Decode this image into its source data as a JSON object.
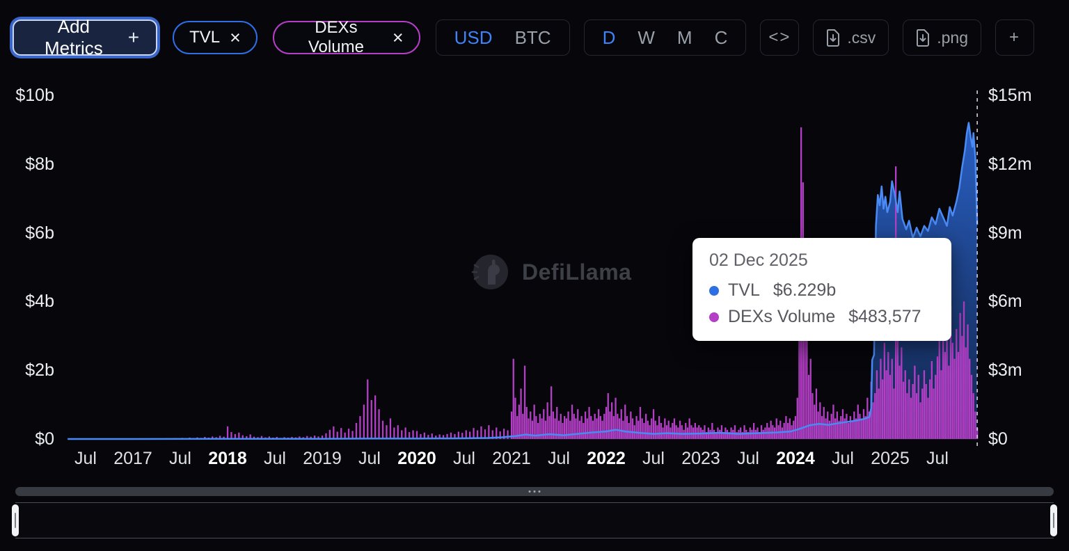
{
  "colors": {
    "tvl": "#2f6fe4",
    "dex": "#b43fc6",
    "accent": "#3f83f8",
    "background": "#06060b"
  },
  "toolbar": {
    "add_metrics_label": "Add Metrics",
    "add_metrics_plus": "+",
    "pills": [
      {
        "label": "TVL",
        "close": "×",
        "color": "#2f6fe4"
      },
      {
        "label": "DEXs Volume",
        "close": "×",
        "color": "#b43fc6"
      }
    ],
    "currency": {
      "options": [
        "USD",
        "BTC"
      ],
      "selected": "USD"
    },
    "interval": {
      "options": [
        "D",
        "W",
        "M",
        "C"
      ],
      "selected": "D"
    },
    "embed_label": "<>",
    "export_csv_label": ".csv",
    "export_png_label": ".png",
    "add_panel_label": "+"
  },
  "watermark": {
    "text": "DefiLlama",
    "icon": "llama-icon"
  },
  "tooltip": {
    "date": "02 Dec 2025",
    "rows": [
      {
        "name": "TVL",
        "value": "$6.229b",
        "color": "#2f6fe4"
      },
      {
        "name": "DEXs Volume",
        "value": "$483,577",
        "color": "#b43fc6"
      }
    ]
  },
  "chart_data": {
    "type": "mixed",
    "x_range": [
      2016.31,
      2025.95
    ],
    "cursor": {
      "t": 2025.92
    },
    "left_axis": {
      "max": 10,
      "unit": "$b",
      "ticks": [
        {
          "label": "$10b",
          "value": 10
        },
        {
          "label": "$8b",
          "value": 8
        },
        {
          "label": "$6b",
          "value": 6
        },
        {
          "label": "$4b",
          "value": 4
        },
        {
          "label": "$2b",
          "value": 2
        },
        {
          "label": "$0",
          "value": 0
        }
      ]
    },
    "right_axis": {
      "max": 15,
      "unit": "$m",
      "ticks": [
        {
          "label": "$15m",
          "value": 15
        },
        {
          "label": "$12m",
          "value": 12
        },
        {
          "label": "$9m",
          "value": 9
        },
        {
          "label": "$6m",
          "value": 6
        },
        {
          "label": "$3m",
          "value": 3
        },
        {
          "label": "$0",
          "value": 0
        }
      ]
    },
    "x_ticks": [
      {
        "t": 2016.5,
        "label": "Jul"
      },
      {
        "t": 2017,
        "label": "2017"
      },
      {
        "t": 2017.5,
        "label": "Jul"
      },
      {
        "t": 2018,
        "label": "2018",
        "bold": true
      },
      {
        "t": 2018.5,
        "label": "Jul"
      },
      {
        "t": 2019,
        "label": "2019"
      },
      {
        "t": 2019.5,
        "label": "Jul"
      },
      {
        "t": 2020,
        "label": "2020",
        "bold": true
      },
      {
        "t": 2020.5,
        "label": "Jul"
      },
      {
        "t": 2021,
        "label": "2021"
      },
      {
        "t": 2021.5,
        "label": "Jul"
      },
      {
        "t": 2022,
        "label": "2022",
        "bold": true
      },
      {
        "t": 2022.5,
        "label": "Jul"
      },
      {
        "t": 2023,
        "label": "2023"
      },
      {
        "t": 2023.5,
        "label": "Jul"
      },
      {
        "t": 2024,
        "label": "2024",
        "bold": true
      },
      {
        "t": 2024.5,
        "label": "Jul"
      },
      {
        "t": 2025,
        "label": "2025"
      },
      {
        "t": 2025.5,
        "label": "Jul"
      }
    ],
    "series": [
      {
        "name": "TVL",
        "type": "line",
        "axis": "left",
        "unit": "$b",
        "color": "#2f6fe4",
        "points": [
          [
            2016.31,
            0
          ],
          [
            2017,
            0.001
          ],
          [
            2018,
            0.004
          ],
          [
            2018.5,
            0.005
          ],
          [
            2019,
            0.006
          ],
          [
            2019.5,
            0.012
          ],
          [
            2020,
            0.012
          ],
          [
            2020.5,
            0.02
          ],
          [
            2020.75,
            0.03
          ],
          [
            2020.9,
            0.05
          ],
          [
            2021.05,
            0.09
          ],
          [
            2021.15,
            0.13
          ],
          [
            2021.25,
            0.1
          ],
          [
            2021.4,
            0.14
          ],
          [
            2021.55,
            0.11
          ],
          [
            2021.7,
            0.15
          ],
          [
            2021.85,
            0.19
          ],
          [
            2022,
            0.22
          ],
          [
            2022.1,
            0.27
          ],
          [
            2022.2,
            0.22
          ],
          [
            2022.35,
            0.18
          ],
          [
            2022.5,
            0.15
          ],
          [
            2022.65,
            0.17
          ],
          [
            2022.8,
            0.15
          ],
          [
            2023,
            0.16
          ],
          [
            2023.2,
            0.18
          ],
          [
            2023.4,
            0.15
          ],
          [
            2023.6,
            0.17
          ],
          [
            2023.8,
            0.19
          ],
          [
            2023.95,
            0.22
          ],
          [
            2024.05,
            0.3
          ],
          [
            2024.15,
            0.4
          ],
          [
            2024.25,
            0.44
          ],
          [
            2024.35,
            0.41
          ],
          [
            2024.45,
            0.46
          ],
          [
            2024.55,
            0.5
          ],
          [
            2024.65,
            0.54
          ],
          [
            2024.72,
            0.58
          ],
          [
            2024.78,
            0.64
          ],
          [
            2024.8,
            0.9
          ],
          [
            2024.81,
            2.3
          ],
          [
            2024.83,
            2.45
          ],
          [
            2024.85,
            6.2
          ],
          [
            2024.87,
            7.1
          ],
          [
            2024.89,
            6.8
          ],
          [
            2024.91,
            7.35
          ],
          [
            2024.93,
            6.7
          ],
          [
            2024.95,
            7.05
          ],
          [
            2024.97,
            6.6
          ],
          [
            2025,
            6.9
          ],
          [
            2025.02,
            7.5
          ],
          [
            2025.05,
            7.1
          ],
          [
            2025.08,
            6.6
          ],
          [
            2025.1,
            7.2
          ],
          [
            2025.13,
            6.4
          ],
          [
            2025.17,
            6.1
          ],
          [
            2025.2,
            6.35
          ],
          [
            2025.24,
            5.85
          ],
          [
            2025.28,
            6.15
          ],
          [
            2025.32,
            5.9
          ],
          [
            2025.36,
            6.2
          ],
          [
            2025.4,
            6.05
          ],
          [
            2025.44,
            6.45
          ],
          [
            2025.48,
            6.25
          ],
          [
            2025.52,
            6.7
          ],
          [
            2025.56,
            6.45
          ],
          [
            2025.6,
            6.2
          ],
          [
            2025.63,
            6.75
          ],
          [
            2025.66,
            6.5
          ],
          [
            2025.7,
            6.9
          ],
          [
            2025.73,
            7.3
          ],
          [
            2025.76,
            7.9
          ],
          [
            2025.79,
            8.4
          ],
          [
            2025.81,
            8.9
          ],
          [
            2025.83,
            9.2
          ],
          [
            2025.85,
            8.8
          ],
          [
            2025.87,
            8.5
          ],
          [
            2025.88,
            8.9
          ],
          [
            2025.9,
            8.2
          ],
          [
            2025.91,
            7.2
          ],
          [
            2025.92,
            6.229
          ]
        ]
      },
      {
        "name": "DEXs Volume",
        "type": "bar",
        "axis": "right",
        "unit": "$m",
        "color": "#b43fc6",
        "segments": [
          {
            "start": 2016.32,
            "step": 0.04,
            "values": [
              0.003,
              0.004,
              0.003,
              0.005,
              0.004,
              0.006,
              0.005,
              0.007,
              0.005,
              0.008,
              0.006,
              0.009,
              0.007,
              0.01,
              0.008,
              0.012,
              0.01
            ]
          },
          {
            "start": 2017.0,
            "step": 0.04,
            "values": [
              0.012,
              0.018,
              0.014,
              0.02,
              0.016,
              0.025,
              0.018,
              0.03,
              0.022,
              0.035,
              0.025,
              0.04,
              0.03,
              0.05,
              0.035,
              0.06,
              0.04,
              0.07,
              0.05,
              0.09,
              0.06,
              0.11,
              0.08,
              0.14,
              0.1
            ]
          },
          {
            "start": 2018.0,
            "step": 0.04,
            "values": [
              0.55,
              0.3,
              0.22,
              0.28,
              0.16,
              0.12,
              0.2,
              0.1,
              0.08,
              0.13,
              0.07,
              0.11,
              0.06,
              0.09,
              0.05,
              0.08,
              0.06,
              0.09,
              0.07,
              0.11,
              0.08,
              0.13,
              0.1,
              0.15,
              0.11
            ]
          },
          {
            "start": 2019.0,
            "step": 0.04,
            "values": [
              0.15,
              0.25,
              0.4,
              0.55,
              0.32,
              0.48,
              0.28,
              0.45,
              0.35,
              0.7,
              1.0,
              1.5,
              2.6,
              1.7,
              1.9,
              1.3,
              0.8,
              0.6,
              0.9,
              0.5,
              0.6,
              0.38,
              0.5,
              0.3,
              0.38
            ]
          },
          {
            "start": 2020.0,
            "step": 0.04,
            "values": [
              0.35,
              0.22,
              0.28,
              0.18,
              0.24,
              0.15,
              0.2,
              0.17,
              0.22,
              0.28,
              0.22,
              0.32,
              0.27,
              0.38,
              0.32,
              0.48,
              0.38,
              0.55,
              0.42,
              0.6,
              0.38,
              0.5,
              0.33,
              0.45,
              0.38
            ]
          },
          {
            "start": 2021.0,
            "step": 0.02,
            "values": [
              1.2,
              3.5,
              1.8,
              1.0,
              1.5,
              2.2,
              1.1,
              3.2,
              1.4,
              0.9,
              1.2,
              0.8,
              1.5,
              1.0,
              0.7,
              1.1,
              0.9,
              1.3,
              0.8,
              1.6,
              1.0,
              2.3,
              1.2,
              0.9,
              1.4,
              0.8,
              1.1,
              0.7,
              1.0,
              0.9,
              1.2,
              0.8,
              1.5,
              1.1,
              0.9,
              1.3,
              0.8,
              1.0,
              0.7,
              1.2,
              0.9,
              1.4,
              1.0,
              0.8,
              1.1,
              0.9,
              1.3,
              1.0,
              0.8,
              1.1
            ]
          },
          {
            "start": 2022.0,
            "step": 0.02,
            "values": [
              1.4,
              2.0,
              1.2,
              1.6,
              1.0,
              1.8,
              1.1,
              0.9,
              1.3,
              0.8,
              1.5,
              1.0,
              0.7,
              1.2,
              0.9,
              0.6,
              1.0,
              0.8,
              1.4,
              0.9,
              0.7,
              1.1,
              0.8,
              0.6,
              0.9,
              1.3,
              0.8,
              0.6,
              1.0,
              0.7,
              0.5,
              0.9,
              0.6,
              0.8,
              0.5,
              0.7,
              0.9,
              0.6,
              0.5,
              0.8,
              0.6,
              0.4,
              0.7,
              0.5,
              0.9,
              0.6,
              0.5,
              0.7,
              0.5,
              0.6
            ]
          },
          {
            "start": 2023.0,
            "step": 0.02,
            "values": [
              0.5,
              0.4,
              0.6,
              0.3,
              0.5,
              0.4,
              0.7,
              0.4,
              0.3,
              0.5,
              0.4,
              0.6,
              0.3,
              0.5,
              0.4,
              0.3,
              0.5,
              0.4,
              0.6,
              0.3,
              0.4,
              0.5,
              0.3,
              0.6,
              0.4,
              0.3,
              0.5,
              0.4,
              0.7,
              0.4,
              0.5,
              0.3,
              0.6,
              0.4,
              0.5,
              0.7,
              0.5,
              0.8,
              0.6,
              0.5,
              0.9,
              0.6,
              0.8,
              0.5,
              0.7,
              1.0,
              0.7,
              0.9,
              0.6,
              0.8
            ]
          },
          {
            "start": 2024.0,
            "step": 0.02,
            "values": [
              1.0,
              1.8,
              6.5,
              13.6,
              11.2,
              7.6,
              4.5,
              2.8,
              3.5,
              2.0,
              1.5,
              2.2,
              1.2,
              1.6,
              1.0,
              1.4,
              0.9,
              1.2,
              0.8,
              1.1,
              1.5,
              0.9,
              1.2,
              0.8,
              1.0,
              1.3,
              0.9,
              1.1,
              0.7,
              1.0,
              0.8,
              1.2,
              0.9,
              1.5,
              1.1,
              0.9,
              1.3,
              1.0,
              1.8,
              1.2,
              2.5,
              1.6,
              2.0,
              3.0,
              2.2,
              3.5,
              2.6,
              4.2,
              3.0,
              3.8
            ]
          },
          {
            "start": 2025.0,
            "step": 0.02,
            "values": [
              2.8,
              3.5,
              2.2,
              11.9,
              5.0,
              3.2,
              4.0,
              2.5,
              3.0,
              2.0,
              2.6,
              1.8,
              2.4,
              3.2,
              2.0,
              2.8,
              1.6,
              2.2,
              3.0,
              2.4,
              1.8,
              2.6,
              3.4,
              2.2,
              2.8,
              3.6,
              4.5,
              3.0,
              5.2,
              3.8,
              4.6,
              3.2,
              5.8,
              4.2,
              3.5,
              4.8,
              3.8,
              5.5,
              4.5,
              6.0,
              4.0,
              5.0,
              3.5,
              2.8,
              2.0,
              1.2,
              0.48
            ]
          }
        ]
      }
    ]
  }
}
